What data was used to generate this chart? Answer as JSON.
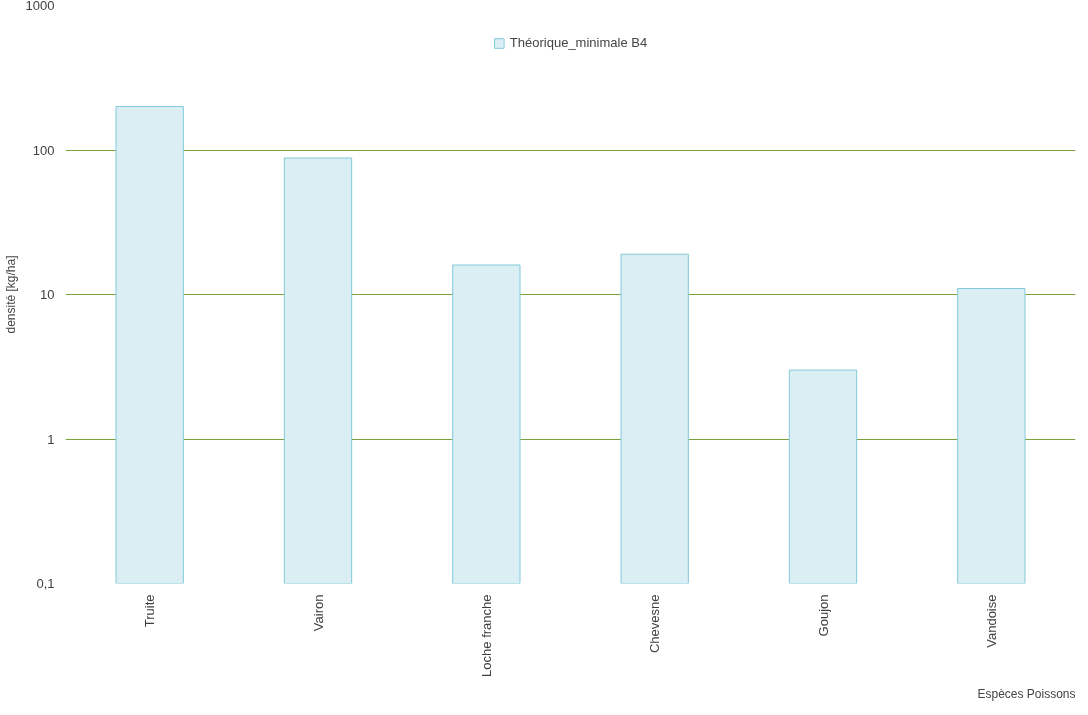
{
  "chart_data": {
    "type": "bar",
    "ylabel": "densité [kg/ha]",
    "xlabel": "Espèces Poissons",
    "categories": [
      "Truite",
      "Vairon",
      "Loche franche",
      "Chevesne",
      "Goujon",
      "Vandoise"
    ],
    "series": [
      {
        "name": "Théorique_minimale B4",
        "color": "#daeef3",
        "values": [
          200,
          88,
          16,
          19,
          3,
          11
        ]
      }
    ],
    "log": true,
    "ylim": [
      0.1,
      1000
    ],
    "yticks": [
      {
        "value": 0.1,
        "label": "0,1"
      },
      1,
      10,
      100,
      1000
    ],
    "grid": "y",
    "legend": "top"
  }
}
